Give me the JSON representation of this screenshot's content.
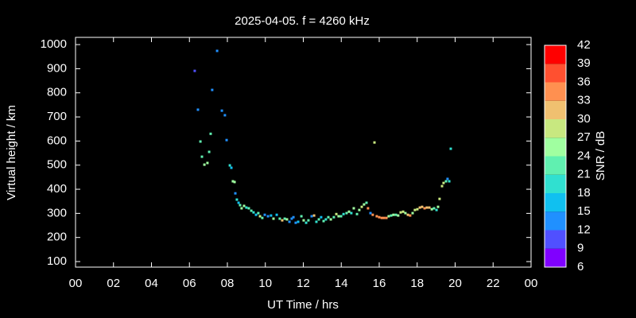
{
  "chart_data": {
    "type": "scatter",
    "title": "2025-04-05. f = 4260 kHz",
    "x_label": "UT Time / hrs",
    "y_label": "Virtual height / km",
    "xlim": [
      0,
      24
    ],
    "ylim": [
      77,
      1030
    ],
    "xticks": [
      {
        "value": 0,
        "label": "00"
      },
      {
        "value": 2,
        "label": "02"
      },
      {
        "value": 4,
        "label": "04"
      },
      {
        "value": 6,
        "label": "06"
      },
      {
        "value": 8,
        "label": "08"
      },
      10,
      12,
      14,
      16,
      18,
      20,
      22,
      {
        "value": 24,
        "label": "00"
      }
    ],
    "yticks": [
      100,
      200,
      300,
      400,
      500,
      600,
      700,
      800,
      900,
      1000
    ],
    "colorbar": {
      "label": "SNR / dB",
      "ticks": [
        6,
        9,
        12,
        15,
        18,
        21,
        24,
        27,
        30,
        33,
        36,
        39,
        42
      ],
      "colors": [
        "#8000ff",
        "#5050ff",
        "#2090ff",
        "#10c0f0",
        "#30e0d0",
        "#60f0b0",
        "#a0ffa0",
        "#c8e880",
        "#f0c070",
        "#ff9050",
        "#ff5030",
        "#ff0000"
      ]
    },
    "x": [
      6.28,
      6.45,
      6.58,
      6.66,
      6.79,
      6.95,
      7.04,
      7.12,
      7.2,
      7.46,
      7.71,
      7.87,
      7.96,
      8.13,
      8.21,
      8.29,
      8.38,
      8.42,
      8.5,
      8.59,
      8.67,
      8.75,
      8.88,
      9.0,
      9.13,
      9.26,
      9.38,
      9.51,
      9.63,
      9.72,
      9.84,
      9.97,
      10.14,
      10.3,
      10.43,
      10.6,
      10.76,
      10.89,
      11.02,
      11.14,
      11.27,
      11.39,
      11.48,
      11.6,
      11.73,
      11.9,
      12.02,
      12.15,
      12.27,
      12.44,
      12.57,
      12.69,
      12.82,
      12.94,
      13.07,
      13.19,
      13.32,
      13.45,
      13.61,
      13.74,
      13.86,
      13.99,
      14.12,
      14.28,
      14.41,
      14.53,
      14.66,
      14.83,
      14.95,
      15.08,
      15.2,
      15.33,
      15.41,
      15.54,
      15.66,
      15.75,
      15.87,
      16.0,
      16.13,
      16.25,
      16.38,
      16.5,
      16.63,
      16.75,
      16.88,
      17.0,
      17.13,
      17.26,
      17.38,
      17.51,
      17.63,
      17.76,
      17.88,
      18.01,
      18.14,
      18.26,
      18.39,
      18.51,
      18.64,
      18.77,
      18.89,
      19.02,
      19.1,
      19.18,
      19.31,
      19.39,
      19.52,
      19.6,
      19.69,
      19.77
    ],
    "values": [
      891,
      730,
      598,
      535,
      502,
      509,
      555,
      630,
      812,
      974,
      726,
      707,
      604,
      499,
      489,
      433,
      430,
      383,
      357,
      344,
      334,
      321,
      331,
      324,
      321,
      311,
      304,
      294,
      301,
      288,
      281,
      294,
      288,
      291,
      278,
      294,
      278,
      271,
      278,
      275,
      265,
      278,
      284,
      261,
      265,
      288,
      271,
      261,
      271,
      288,
      291,
      265,
      275,
      284,
      268,
      275,
      284,
      275,
      284,
      297,
      288,
      288,
      297,
      301,
      307,
      301,
      321,
      297,
      314,
      327,
      337,
      344,
      321,
      301,
      294,
      594,
      288,
      284,
      281,
      281,
      281,
      288,
      291,
      294,
      294,
      291,
      304,
      307,
      301,
      294,
      291,
      301,
      314,
      317,
      324,
      327,
      321,
      324,
      324,
      317,
      321,
      314,
      327,
      360,
      413,
      426,
      433,
      443,
      433,
      568
    ],
    "snr": [
      11,
      13,
      21,
      22,
      24,
      24,
      22,
      23,
      13,
      12,
      14,
      13,
      14,
      19,
      15,
      24,
      25,
      14,
      18,
      15,
      22,
      24,
      24,
      19,
      23,
      23,
      18,
      15,
      22,
      29,
      22,
      14,
      13,
      17,
      24,
      15,
      22,
      31,
      22,
      25,
      14,
      13,
      12,
      14,
      17,
      22,
      24,
      18,
      22,
      14,
      32,
      19,
      22,
      15,
      22,
      19,
      23,
      24,
      22,
      28,
      24,
      22,
      19,
      22,
      24,
      19,
      24,
      22,
      25,
      28,
      24,
      23,
      33,
      14,
      34,
      29,
      33,
      34,
      35,
      34,
      33,
      24,
      23,
      24,
      22,
      24,
      28,
      29,
      24,
      32,
      33,
      24,
      28,
      28,
      31,
      32,
      33,
      32,
      32,
      24,
      22,
      19,
      24,
      27,
      28,
      28,
      22,
      14,
      19,
      19
    ]
  }
}
